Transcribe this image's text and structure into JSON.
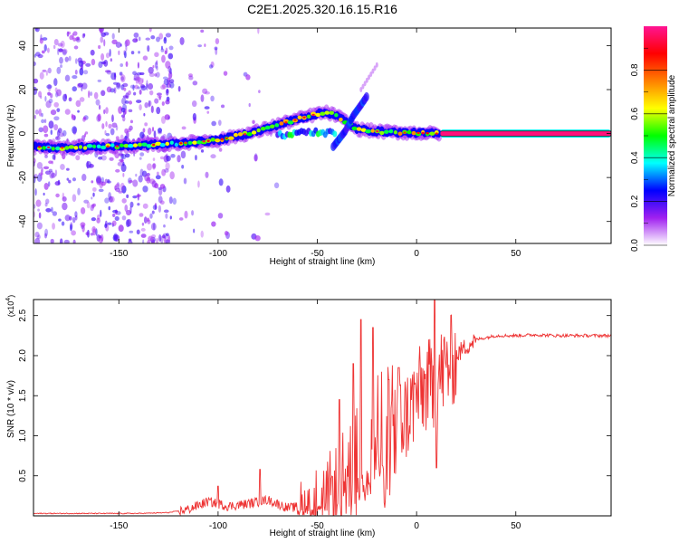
{
  "title": "C2E1.2025.320.16.15.R16",
  "chart_data": [
    {
      "type": "heatmap",
      "xlabel": "Height of straight line (km)",
      "ylabel": "Frequency (Hz)",
      "xlim": [
        -193,
        98
      ],
      "ylim": [
        -50,
        48
      ],
      "xticks": [
        -150,
        -100,
        -50,
        0,
        50
      ],
      "xtick_labels": [
        "-150",
        "-100",
        "-50",
        "0",
        "50"
      ],
      "yticks": [
        -40,
        -20,
        0,
        20,
        40
      ],
      "ytick_labels": [
        "-40",
        "-20",
        "0",
        "20",
        "40"
      ],
      "ridge": {
        "x": [
          -193,
          -180,
          -160,
          -140,
          -120,
          -100,
          -90,
          -80,
          -70,
          -60,
          -50,
          -45,
          -40,
          -35,
          -30,
          -25,
          -20,
          -10,
          0,
          10,
          20,
          50,
          98
        ],
        "y": [
          -6,
          -6.5,
          -6,
          -5.5,
          -4.5,
          -3,
          -1,
          1,
          4,
          6.5,
          9,
          9.5,
          8,
          5,
          2,
          1.5,
          1,
          0.5,
          0.3,
          0,
          0,
          0,
          0
        ]
      },
      "branch": {
        "x": [
          -42,
          -36,
          -32,
          -28,
          -25
        ],
        "y": [
          -6,
          1,
          8,
          13,
          17
        ]
      },
      "colorbar": {
        "label": "Normalized spectral amplitude",
        "range": [
          0,
          1
        ],
        "ticks": [
          0.0,
          0.2,
          0.4,
          0.6,
          0.8
        ],
        "tick_labels": [
          "0.0",
          "0.2",
          "0.4",
          "0.6",
          "0.8"
        ],
        "colors": [
          "#ffffff",
          "#a020f0",
          "#0000ff",
          "#00ffff",
          "#00ff00",
          "#ffff00",
          "#ff8000",
          "#ff0000",
          "#ff1493"
        ]
      }
    },
    {
      "type": "line",
      "xlabel": "Height of straight line (km)",
      "ylabel": "SNR (10 * v/v)",
      "y_multiplier": "(x10",
      "y_exponent": "4",
      "y_multiplier_close": ")",
      "color": "#ee3333",
      "xlim": [
        -193,
        98
      ],
      "ylim": [
        0,
        2.7
      ],
      "xticks": [
        -150,
        -100,
        -50,
        0,
        50
      ],
      "xtick_labels": [
        "-150",
        "-100",
        "-50",
        "0",
        "50"
      ],
      "yticks": [
        0.5,
        1.0,
        1.5,
        2.0,
        2.5
      ],
      "ytick_labels": [
        "0.5",
        "1.0",
        "1.5",
        "2.0",
        "2.5"
      ],
      "trend": {
        "x": [
          -193,
          -140,
          -125,
          -115,
          -105,
          -95,
          -85,
          -75,
          -65,
          -55,
          -45,
          -40,
          -35,
          -30,
          -25,
          -20,
          -15,
          -10,
          -5,
          0,
          5,
          10,
          15,
          20,
          25,
          30,
          40,
          50,
          60,
          70,
          80,
          98
        ],
        "y": [
          0.03,
          0.03,
          0.04,
          0.08,
          0.18,
          0.12,
          0.15,
          0.2,
          0.1,
          0.12,
          0.25,
          0.35,
          0.5,
          0.7,
          0.8,
          0.9,
          1.0,
          1.15,
          1.25,
          1.5,
          1.6,
          1.7,
          1.85,
          2.0,
          2.12,
          2.2,
          2.25,
          2.25,
          2.26,
          2.25,
          2.25,
          2.25
        ]
      },
      "peaks": [
        {
          "x": -100,
          "y": 0.37
        },
        {
          "x": -79,
          "y": 0.58
        },
        {
          "x": -39,
          "y": 1.45
        },
        {
          "x": -32,
          "y": 1.9
        },
        {
          "x": -28,
          "y": 2.45
        },
        {
          "x": -22,
          "y": 2.35
        },
        {
          "x": -14,
          "y": 1.7
        },
        {
          "x": -9,
          "y": 1.85
        },
        {
          "x": 9,
          "y": 2.7
        },
        {
          "x": 10,
          "y": 0.6
        }
      ]
    }
  ]
}
